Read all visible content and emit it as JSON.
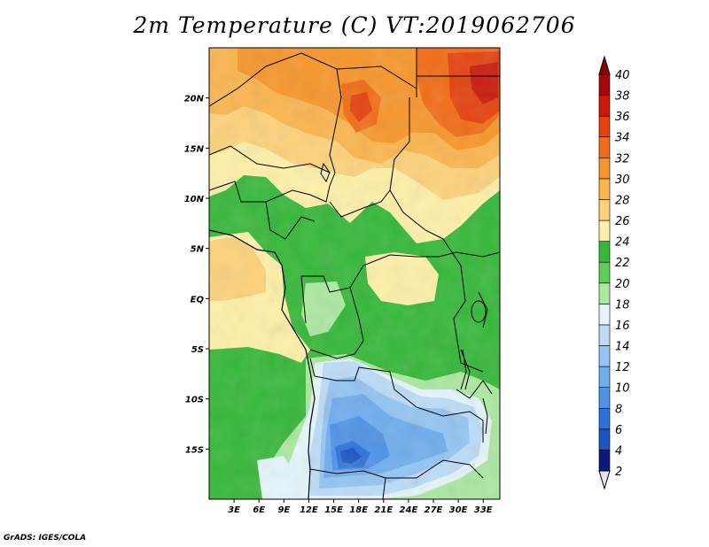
{
  "title": "2m Temperature (C) VT:2019062706",
  "credit": "GrADS: IGES/COLA",
  "map": {
    "lon_range": [
      0,
      35
    ],
    "lat_range": [
      -20,
      25
    ],
    "lon_ticks": [
      {
        "value": 3,
        "label": "3E"
      },
      {
        "value": 6,
        "label": "6E"
      },
      {
        "value": 9,
        "label": "9E"
      },
      {
        "value": 12,
        "label": "12E"
      },
      {
        "value": 15,
        "label": "15E"
      },
      {
        "value": 18,
        "label": "18E"
      },
      {
        "value": 21,
        "label": "21E"
      },
      {
        "value": 24,
        "label": "24E"
      },
      {
        "value": 27,
        "label": "27E"
      },
      {
        "value": 30,
        "label": "30E"
      },
      {
        "value": 33,
        "label": "33E"
      }
    ],
    "lat_ticks": [
      {
        "value": 20,
        "label": "20N"
      },
      {
        "value": 15,
        "label": "15N"
      },
      {
        "value": 10,
        "label": "10N"
      },
      {
        "value": 5,
        "label": "5N"
      },
      {
        "value": 0,
        "label": "EQ"
      },
      {
        "value": -5,
        "label": "5S"
      },
      {
        "value": -10,
        "label": "10S"
      },
      {
        "value": -15,
        "label": "15S"
      }
    ]
  },
  "colorbar": {
    "levels": [
      2,
      4,
      6,
      8,
      10,
      12,
      14,
      16,
      18,
      20,
      22,
      24,
      26,
      28,
      30,
      32,
      34,
      36,
      38,
      40
    ],
    "colors": [
      "#e8e0f8",
      "#0a1a7a",
      "#1b55c0",
      "#2e72d8",
      "#4f92e6",
      "#6fadee",
      "#93c5f3",
      "#bcdcf8",
      "#e4f6fb",
      "#ace8a0",
      "#5fce56",
      "#35b838",
      "#fff0a8",
      "#fdd27a",
      "#fbb54e",
      "#f7962a",
      "#f26c16",
      "#e4420e",
      "#c91b0b",
      "#a50808",
      "#8a0000"
    ]
  }
}
